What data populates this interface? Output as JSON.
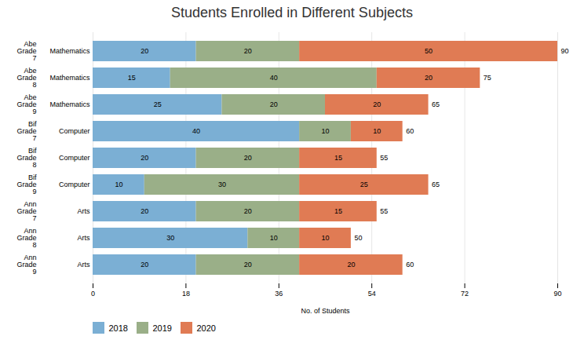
{
  "chart_data": {
    "type": "bar",
    "orientation": "horizontal",
    "stacked": true,
    "title": "Students Enrolled in Different Subjects",
    "xlabel": "No. of Students",
    "categories": [
      "Abe\nGrade\n7",
      "Abe\nGrade\n8",
      "Abe\nGrade\n9",
      "Bif\nGrade\n7",
      "Bif\nGrade\n8",
      "Bif\nGrade\n9",
      "Ann\nGrade\n7",
      "Ann\nGrade\n8",
      "Ann\nGrade\n9"
    ],
    "subject_labels": [
      "Mathematics",
      "Mathematics",
      "Mathematics",
      "Computer",
      "Computer",
      "Computer",
      "Arts",
      "Arts",
      "Arts"
    ],
    "series": [
      {
        "name": "2018",
        "color": "#7BAFD4",
        "values": [
          20,
          15,
          25,
          40,
          20,
          10,
          20,
          30,
          20
        ]
      },
      {
        "name": "2019",
        "color": "#9AAF88",
        "values": [
          20,
          40,
          20,
          10,
          20,
          30,
          20,
          10,
          20
        ]
      },
      {
        "name": "2020",
        "color": "#E07B54",
        "values": [
          50,
          20,
          20,
          10,
          15,
          25,
          15,
          10,
          20
        ]
      }
    ],
    "totals": [
      90,
      75,
      65,
      60,
      55,
      65,
      55,
      50,
      60
    ],
    "xlim": [
      0,
      90
    ],
    "xticks": [
      0,
      18,
      36,
      54,
      72,
      90
    ],
    "grid": true,
    "data_labels": true,
    "legend": "bottom"
  }
}
